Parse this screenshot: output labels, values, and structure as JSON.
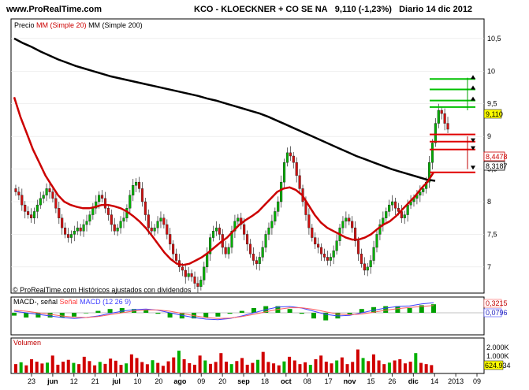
{
  "header": {
    "site": "www.ProRealTime.com",
    "instrument": "KCO - KLOECKNER + CO SE NA",
    "last": "9,110 (-1,23%)",
    "period": "Diario  14 dic 2012"
  },
  "legend": {
    "price": "Precio",
    "mm20": "MM (Simple 20)",
    "mm200": "MM (Simple 200)"
  },
  "watermark": "© ProRealTime.com Históricos ajustados con dividendos",
  "macd_panel": {
    "label_a": "MACD-, señal",
    "label_b": "Señal",
    "label_c": "MACD (12 26 9)",
    "value_macd": "0,3215",
    "value_signal": "0,0796"
  },
  "volume_panel": {
    "label": "Volumen",
    "tick_top": "2.000K",
    "tick_mid": "1.000K",
    "value": "624.934"
  },
  "price_tags": {
    "last": "9,110",
    "mm20": "8,4478",
    "mm200": "8,3187"
  },
  "colors": {
    "up": "#00b000",
    "down": "#d01010",
    "mm20": "#cc0000",
    "mm200": "#000000",
    "macd": "#4040ff",
    "signal": "#ff6060",
    "volume": "#d00000"
  },
  "chart_data": {
    "type": "line",
    "title": "KCO - KLOECKNER + CO SE NA",
    "y_ticks": [
      "10,5",
      "10",
      "9,5",
      "9",
      "8,5",
      "8",
      "7,5",
      "7"
    ],
    "ylim": [
      6.6,
      10.8
    ],
    "x_ticks": [
      "23",
      "jun",
      "12",
      "21",
      "jul",
      "10",
      "20",
      "ago",
      "09",
      "20",
      "sep",
      "18",
      "oct",
      "08",
      "17",
      "nov",
      "15",
      "26",
      "dic",
      "14",
      "2013",
      "09"
    ],
    "series": [
      {
        "name": "Precio",
        "values": [
          8.15,
          8.1,
          7.95,
          7.85,
          7.8,
          7.75,
          7.85,
          7.95,
          8.05,
          8.1,
          8.2,
          8.15,
          8.05,
          7.9,
          7.75,
          7.6,
          7.5,
          7.45,
          7.5,
          7.55,
          7.6,
          7.55,
          7.65,
          7.7,
          7.8,
          7.9,
          8.0,
          8.1,
          8.05,
          7.9,
          7.8,
          7.65,
          7.55,
          7.6,
          7.7,
          7.75,
          7.9,
          8.1,
          8.25,
          8.3,
          8.2,
          8.0,
          7.8,
          7.6,
          7.55,
          7.6,
          7.7,
          7.75,
          7.65,
          7.5,
          7.35,
          7.2,
          7.1,
          7.0,
          6.95,
          6.85,
          6.9,
          6.85,
          6.75,
          6.7,
          6.8,
          7.0,
          7.2,
          7.45,
          7.55,
          7.6,
          7.5,
          7.3,
          7.2,
          7.3,
          7.55,
          7.7,
          7.75,
          7.65,
          7.5,
          7.35,
          7.2,
          7.1,
          7.05,
          7.15,
          7.3,
          7.5,
          7.6,
          7.7,
          7.85,
          8.0,
          8.3,
          8.6,
          8.75,
          8.7,
          8.6,
          8.4,
          8.2,
          8.0,
          7.8,
          7.6,
          7.45,
          7.35,
          7.3,
          7.2,
          7.15,
          7.1,
          7.15,
          7.25,
          7.4,
          7.6,
          7.7,
          7.75,
          7.7,
          7.6,
          7.4,
          7.2,
          7.05,
          6.95,
          7.0,
          7.1,
          7.3,
          7.5,
          7.65,
          7.75,
          7.85,
          7.95,
          8.0,
          7.9,
          7.85,
          7.75,
          7.8,
          7.95,
          8.0,
          8.05,
          8.1,
          8.15,
          8.2,
          8.3,
          8.6,
          8.9,
          9.2,
          9.4,
          9.35,
          9.2,
          9.11
        ]
      },
      {
        "name": "MM (Simple 20)",
        "values": [
          9.6,
          9.3,
          9.05,
          8.8,
          8.6,
          8.4,
          8.25,
          8.1,
          8.0,
          7.95,
          7.92,
          7.9,
          7.9,
          7.92,
          7.95,
          7.95,
          7.93,
          7.9,
          7.85,
          7.78,
          7.7,
          7.6,
          7.48,
          7.35,
          7.22,
          7.12,
          7.05,
          7.03,
          7.05,
          7.1,
          7.15,
          7.22,
          7.3,
          7.38,
          7.45,
          7.55,
          7.65,
          7.72,
          7.78,
          7.85,
          7.95,
          8.05,
          8.15,
          8.2,
          8.22,
          8.18,
          8.1,
          7.95,
          7.8,
          7.68,
          7.6,
          7.55,
          7.5,
          7.45,
          7.42,
          7.42,
          7.45,
          7.5,
          7.58,
          7.65,
          7.7,
          7.78,
          7.88,
          7.98,
          8.08,
          8.2,
          8.3,
          8.45
        ]
      },
      {
        "name": "MM (Simple 200)",
        "values": [
          10.5,
          10.43,
          10.37,
          10.3,
          10.24,
          10.18,
          10.13,
          10.08,
          10.04,
          10.0,
          9.96,
          9.92,
          9.89,
          9.86,
          9.83,
          9.8,
          9.77,
          9.74,
          9.71,
          9.68,
          9.65,
          9.62,
          9.58,
          9.55,
          9.51,
          9.47,
          9.43,
          9.39,
          9.35,
          9.3,
          9.24,
          9.18,
          9.12,
          9.06,
          9.0,
          8.94,
          8.88,
          8.82,
          8.76,
          8.7,
          8.65,
          8.6,
          8.55,
          8.5,
          8.46,
          8.42,
          8.38,
          8.34,
          8.32
        ]
      }
    ],
    "macd": {
      "macd": [
        0.05,
        0.0,
        -0.05,
        -0.1,
        -0.15,
        -0.18,
        -0.15,
        -0.1,
        -0.02,
        0.05,
        0.1,
        0.12,
        0.08,
        0.0,
        -0.08,
        -0.15,
        -0.2,
        -0.22,
        -0.18,
        -0.1,
        0.0,
        0.1,
        0.18,
        0.2,
        0.15,
        0.05,
        -0.05,
        -0.1,
        -0.08,
        0.0,
        0.08,
        0.15,
        0.2,
        0.22,
        0.28,
        0.32
      ],
      "signal": [
        0.08,
        0.05,
        0.0,
        -0.05,
        -0.1,
        -0.14,
        -0.15,
        -0.12,
        -0.06,
        0.0,
        0.06,
        0.09,
        0.09,
        0.05,
        -0.02,
        -0.09,
        -0.15,
        -0.18,
        -0.17,
        -0.12,
        -0.05,
        0.03,
        0.11,
        0.16,
        0.16,
        0.11,
        0.03,
        -0.04,
        -0.06,
        -0.04,
        0.02,
        0.08,
        0.13,
        0.17,
        0.2,
        0.23
      ]
    },
    "volume_k": [
      700,
      850,
      600,
      1100,
      900,
      750,
      820,
      1400,
      650,
      900,
      1050,
      800,
      700,
      1300,
      950,
      600,
      880,
      720,
      1150,
      980,
      640,
      760,
      1500,
      1200,
      870,
      690,
      1020,
      800,
      560,
      930,
      1250,
      1800,
      1100,
      780,
      650,
      1400,
      1000,
      720,
      880,
      1600,
      900,
      700,
      950,
      1200,
      650,
      800,
      1050,
      1700,
      880,
      760,
      600,
      920,
      1300,
      1000,
      700,
      850,
      640,
      1100,
      1400,
      900,
      760,
      1000,
      1250,
      700,
      880,
      1900,
      1200,
      950,
      1500,
      1000,
      700,
      820,
      1000,
      1100,
      760,
      900,
      1600,
      800,
      700,
      620
    ]
  }
}
